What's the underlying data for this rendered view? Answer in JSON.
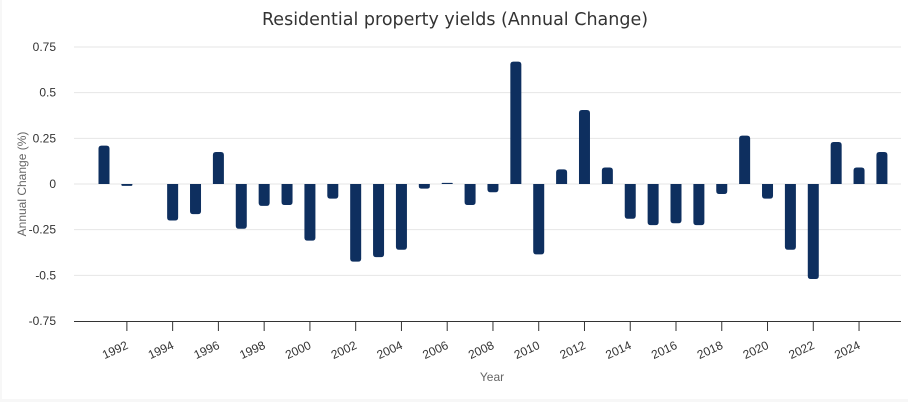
{
  "chart_data": {
    "type": "bar",
    "title": "Residential property yields (Annual Change)",
    "xlabel": "Year",
    "ylabel": "Annual Change (%)",
    "ylim": [
      -0.75,
      0.75
    ],
    "yticks": [
      0.75,
      0.5,
      0.25,
      0,
      -0.25,
      -0.5,
      -0.75
    ],
    "ytick_labels": [
      "0.75",
      "0.5",
      "0.25",
      "0",
      "-0.25",
      "-0.5",
      "-0.75"
    ],
    "xtick_labels": [
      "1992",
      "1994",
      "1996",
      "1998",
      "2000",
      "2002",
      "2004",
      "2006",
      "2008",
      "2010",
      "2012",
      "2014",
      "2016",
      "2018",
      "2020",
      "2022",
      "2024"
    ],
    "grid": true,
    "legend": "none",
    "bar_color": "#0e2f5f",
    "categories": [
      "1991",
      "1992",
      "1993",
      "1994",
      "1995",
      "1996",
      "1997",
      "1998",
      "1999",
      "2000",
      "2001",
      "2002",
      "2003",
      "2004",
      "2005",
      "2006",
      "2007",
      "2008",
      "2009",
      "2010",
      "2011",
      "2012",
      "2013",
      "2014",
      "2015",
      "2016",
      "2017",
      "2018",
      "2019",
      "2020",
      "2021",
      "2022",
      "2023",
      "2024",
      "2025"
    ],
    "values": [
      0.21,
      -0.01,
      0.0,
      -0.2,
      -0.165,
      0.175,
      -0.245,
      -0.12,
      -0.115,
      -0.31,
      -0.08,
      -0.425,
      -0.4,
      -0.36,
      -0.025,
      0.006,
      -0.115,
      -0.045,
      0.67,
      -0.385,
      0.08,
      0.405,
      0.09,
      -0.19,
      -0.225,
      -0.215,
      -0.225,
      -0.055,
      0.265,
      -0.08,
      -0.36,
      -0.52,
      0.23,
      0.09,
      0.175
    ]
  }
}
